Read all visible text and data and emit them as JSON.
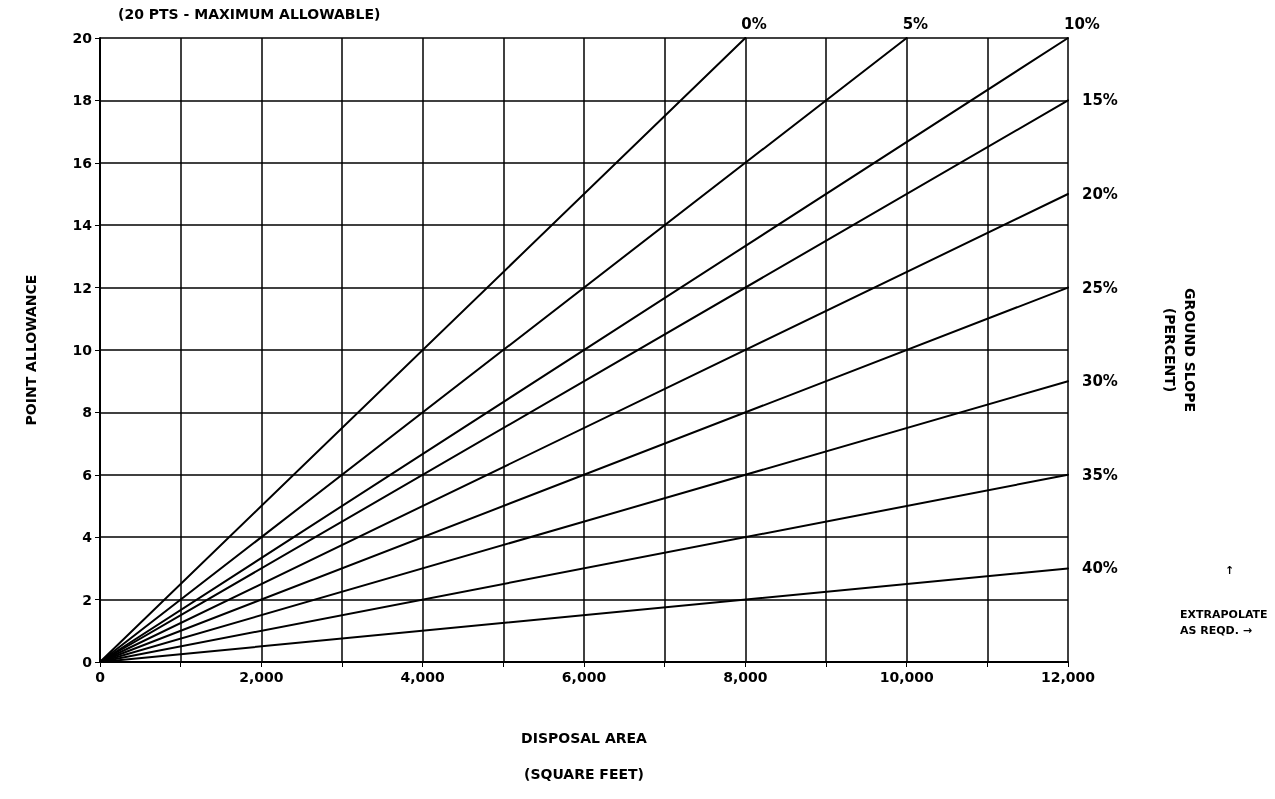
{
  "chart_data": {
    "type": "line",
    "xlabel": "DISPOSAL AREA\n(SQUARE FEET)",
    "ylabel": "POINT ALLOWANCE",
    "y2label": "GROUND SLOPE\n(PERCENT)",
    "annotations": [
      "(20 PTS - MAXIMUM ALLOWABLE)",
      "EXTRAPOLATE\nAS REQD. →",
      "↑"
    ],
    "xlim": [
      0,
      12000
    ],
    "xticks": [
      0,
      {
        "value": 1000,
        "label": null
      },
      {
        "value": 2000,
        "label": "2,000"
      },
      {
        "value": 3000,
        "label": null
      },
      {
        "value": 4000,
        "label": "4,000"
      },
      {
        "value": 5000,
        "label": null
      },
      {
        "value": 6000,
        "label": "6,000"
      },
      {
        "value": 7000,
        "label": null
      },
      {
        "value": 8000,
        "label": "8,000"
      },
      {
        "value": 9000,
        "label": null
      },
      {
        "value": 10000,
        "label": "10,000"
      },
      {
        "value": 11000,
        "label": null
      },
      {
        "value": 12000,
        "label": "12,000"
      }
    ],
    "ylim": [
      0,
      20
    ],
    "yticks": [
      0,
      2,
      4,
      6,
      8,
      10,
      12,
      14,
      16,
      18,
      20
    ],
    "grid": true,
    "legend": false,
    "marker": "none",
    "line_style": "solid",
    "series": [
      {
        "name": "0%",
        "color": "#000000",
        "x": [
          0,
          8000
        ],
        "values": [
          0,
          20
        ]
      },
      {
        "name": "5%",
        "color": "#000000",
        "x": [
          0,
          10000
        ],
        "values": [
          0,
          20
        ]
      },
      {
        "name": "10%",
        "color": "#000000",
        "x": [
          0,
          12000
        ],
        "values": [
          0,
          20
        ]
      },
      {
        "name": "15%",
        "color": "#000000",
        "x": [
          0,
          12000
        ],
        "values": [
          0,
          18
        ]
      },
      {
        "name": "20%",
        "color": "#000000",
        "x": [
          0,
          12000
        ],
        "values": [
          0,
          15
        ]
      },
      {
        "name": "25%",
        "color": "#000000",
        "x": [
          0,
          12000
        ],
        "values": [
          0,
          12
        ]
      },
      {
        "name": "30%",
        "color": "#000000",
        "x": [
          0,
          12000
        ],
        "values": [
          0,
          9
        ]
      },
      {
        "name": "35%",
        "color": "#000000",
        "x": [
          0,
          12000
        ],
        "values": [
          0,
          6
        ]
      },
      {
        "name": "40%",
        "color": "#000000",
        "x": [
          0,
          12000
        ],
        "values": [
          0,
          3
        ]
      }
    ]
  }
}
